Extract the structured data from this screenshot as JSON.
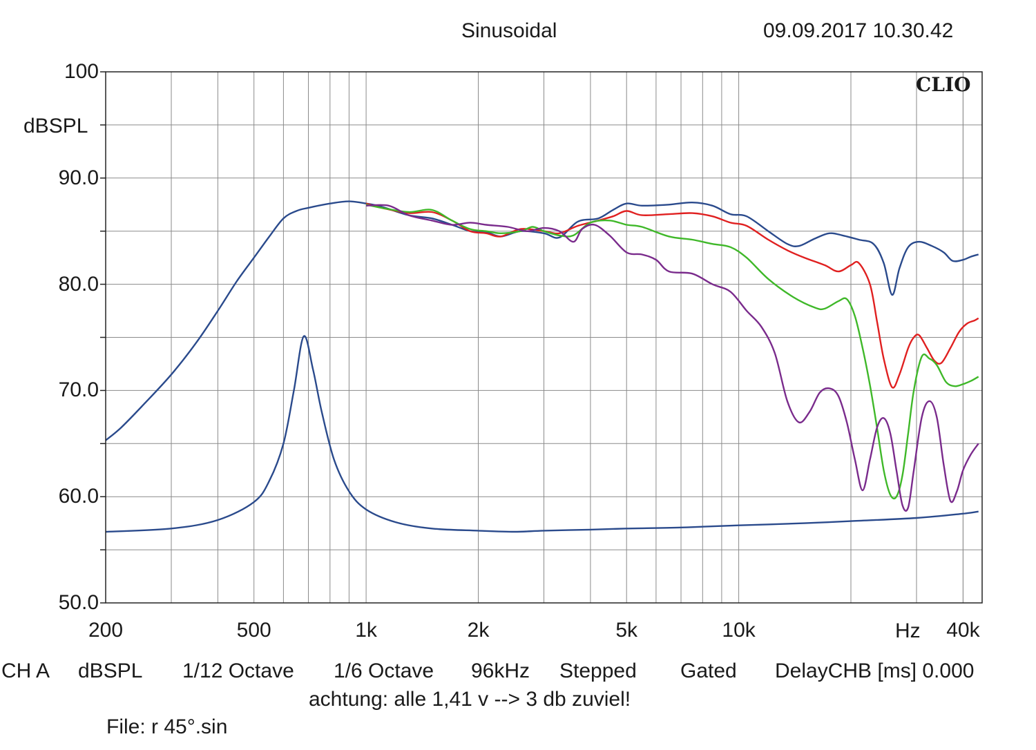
{
  "header": {
    "title": "Sinusoidal",
    "datetime": "09.09.2017 10.30.42"
  },
  "brand": "CLIO",
  "footer": {
    "settings": [
      "CH A",
      "dBSPL",
      "1/12 Octave",
      "1/6 Octave",
      "96kHz",
      "Stepped",
      "Gated",
      "DelayCHB [ms] 0.000"
    ],
    "note": "achtung: alle 1,41 v --> 3 db zuviel!",
    "file": "File: r 45°.sin"
  },
  "chart_data": {
    "type": "line",
    "title": "Sinusoidal",
    "xlabel": "Hz",
    "ylabel": "dBSPL",
    "xscale": "log",
    "xlim": [
      200,
      45000
    ],
    "ylim": [
      50,
      100
    ],
    "grid": true,
    "y_tick_labels": [
      {
        "value": 100,
        "label": "100"
      },
      {
        "value": 90,
        "label": "90.0"
      },
      {
        "value": 80,
        "label": "80.0"
      },
      {
        "value": 70,
        "label": "70.0"
      },
      {
        "value": 60,
        "label": "60.0"
      },
      {
        "value": 50,
        "label": "50.0"
      }
    ],
    "x_tick_labels": [
      {
        "value": 200,
        "label": "200"
      },
      {
        "value": 500,
        "label": "500"
      },
      {
        "value": 1000,
        "label": "1k"
      },
      {
        "value": 2000,
        "label": "2k"
      },
      {
        "value": 5000,
        "label": "5k"
      },
      {
        "value": 10000,
        "label": "10k"
      },
      {
        "value": 40000,
        "label": "40k"
      }
    ],
    "series": [
      {
        "color": "#2a4a8c",
        "points": [
          [
            200,
            65.3
          ],
          [
            220,
            66.5
          ],
          [
            250,
            68.5
          ],
          [
            300,
            71.5
          ],
          [
            350,
            74.5
          ],
          [
            400,
            77.5
          ],
          [
            450,
            80.3
          ],
          [
            500,
            82.5
          ],
          [
            550,
            84.5
          ],
          [
            600,
            86.2
          ],
          [
            650,
            86.9
          ],
          [
            700,
            87.2
          ],
          [
            800,
            87.6
          ],
          [
            900,
            87.8
          ],
          [
            1000,
            87.6
          ],
          [
            1100,
            87.3
          ],
          [
            1300,
            86.5
          ],
          [
            1500,
            86.2
          ],
          [
            1700,
            85.6
          ],
          [
            1900,
            85.0
          ],
          [
            2100,
            84.9
          ],
          [
            2300,
            84.5
          ],
          [
            2600,
            85.0
          ],
          [
            3000,
            84.8
          ],
          [
            3300,
            84.4
          ],
          [
            3700,
            85.9
          ],
          [
            4200,
            86.2
          ],
          [
            4600,
            87.0
          ],
          [
            5000,
            87.6
          ],
          [
            5500,
            87.4
          ],
          [
            6500,
            87.5
          ],
          [
            7500,
            87.7
          ],
          [
            8500,
            87.4
          ],
          [
            9500,
            86.6
          ],
          [
            10500,
            86.4
          ],
          [
            12000,
            85.0
          ],
          [
            13500,
            83.8
          ],
          [
            14500,
            83.6
          ],
          [
            16000,
            84.3
          ],
          [
            17500,
            84.8
          ],
          [
            19000,
            84.6
          ],
          [
            21000,
            84.2
          ],
          [
            23000,
            83.8
          ],
          [
            24500,
            82.0
          ],
          [
            25800,
            79.0
          ],
          [
            27000,
            81.5
          ],
          [
            28500,
            83.5
          ],
          [
            30500,
            84.0
          ],
          [
            33000,
            83.6
          ],
          [
            35500,
            83.0
          ],
          [
            37500,
            82.2
          ],
          [
            40000,
            82.3
          ],
          [
            42000,
            82.6
          ],
          [
            44000,
            82.8
          ]
        ]
      },
      {
        "color": "#2a4a8c",
        "points": [
          [
            200,
            56.7
          ],
          [
            300,
            57.0
          ],
          [
            400,
            57.8
          ],
          [
            500,
            59.5
          ],
          [
            550,
            61.5
          ],
          [
            600,
            65.0
          ],
          [
            640,
            70.0
          ],
          [
            680,
            75.1
          ],
          [
            720,
            72.0
          ],
          [
            760,
            68.0
          ],
          [
            820,
            63.5
          ],
          [
            900,
            60.5
          ],
          [
            1000,
            58.8
          ],
          [
            1200,
            57.6
          ],
          [
            1500,
            57.0
          ],
          [
            2000,
            56.8
          ],
          [
            2500,
            56.7
          ],
          [
            3000,
            56.8
          ],
          [
            4000,
            56.9
          ],
          [
            5000,
            57.0
          ],
          [
            7000,
            57.1
          ],
          [
            10000,
            57.3
          ],
          [
            15000,
            57.5
          ],
          [
            20000,
            57.7
          ],
          [
            30000,
            58.0
          ],
          [
            40000,
            58.4
          ],
          [
            44000,
            58.6
          ]
        ]
      },
      {
        "color": "#e02020",
        "points": [
          [
            1000,
            87.6
          ],
          [
            1100,
            87.2
          ],
          [
            1300,
            86.7
          ],
          [
            1500,
            86.8
          ],
          [
            1700,
            86.0
          ],
          [
            1900,
            85.0
          ],
          [
            2100,
            84.8
          ],
          [
            2300,
            84.5
          ],
          [
            2600,
            85.2
          ],
          [
            3000,
            85.0
          ],
          [
            3300,
            84.8
          ],
          [
            3700,
            85.5
          ],
          [
            4200,
            86.0
          ],
          [
            4600,
            86.4
          ],
          [
            5000,
            86.9
          ],
          [
            5500,
            86.5
          ],
          [
            6500,
            86.6
          ],
          [
            7500,
            86.7
          ],
          [
            8500,
            86.4
          ],
          [
            9500,
            85.8
          ],
          [
            10500,
            85.5
          ],
          [
            12000,
            84.2
          ],
          [
            13500,
            83.2
          ],
          [
            15000,
            82.5
          ],
          [
            17000,
            81.8
          ],
          [
            18500,
            81.2
          ],
          [
            20000,
            81.8
          ],
          [
            21000,
            82.0
          ],
          [
            22500,
            80.0
          ],
          [
            23500,
            76.5
          ],
          [
            24500,
            73.0
          ],
          [
            25800,
            70.3
          ],
          [
            27000,
            71.5
          ],
          [
            28500,
            74.0
          ],
          [
            29500,
            75.0
          ],
          [
            30500,
            75.2
          ],
          [
            32000,
            74.0
          ],
          [
            33500,
            72.8
          ],
          [
            35000,
            72.6
          ],
          [
            37000,
            74.0
          ],
          [
            39000,
            75.5
          ],
          [
            41000,
            76.3
          ],
          [
            43000,
            76.6
          ],
          [
            44000,
            76.8
          ]
        ]
      },
      {
        "color": "#3fb829",
        "points": [
          [
            1000,
            87.5
          ],
          [
            1100,
            87.2
          ],
          [
            1300,
            86.8
          ],
          [
            1500,
            87.0
          ],
          [
            1700,
            86.0
          ],
          [
            1900,
            85.2
          ],
          [
            2100,
            85.0
          ],
          [
            2300,
            84.8
          ],
          [
            2600,
            85.0
          ],
          [
            2800,
            85.4
          ],
          [
            3000,
            85.0
          ],
          [
            3300,
            84.6
          ],
          [
            3600,
            84.6
          ],
          [
            4000,
            85.8
          ],
          [
            4500,
            86.0
          ],
          [
            5000,
            85.6
          ],
          [
            5500,
            85.4
          ],
          [
            6500,
            84.5
          ],
          [
            7500,
            84.2
          ],
          [
            8500,
            83.8
          ],
          [
            9500,
            83.5
          ],
          [
            10500,
            82.5
          ],
          [
            12000,
            80.5
          ],
          [
            14000,
            78.8
          ],
          [
            16000,
            77.8
          ],
          [
            17000,
            77.7
          ],
          [
            18500,
            78.4
          ],
          [
            19500,
            78.6
          ],
          [
            20500,
            77.0
          ],
          [
            21500,
            74.0
          ],
          [
            22500,
            70.5
          ],
          [
            23500,
            66.5
          ],
          [
            24500,
            62.5
          ],
          [
            25500,
            60.2
          ],
          [
            26500,
            60.0
          ],
          [
            27500,
            62.0
          ],
          [
            28500,
            66.0
          ],
          [
            29500,
            70.0
          ],
          [
            31000,
            73.2
          ],
          [
            32500,
            73.0
          ],
          [
            34000,
            72.4
          ],
          [
            36000,
            70.8
          ],
          [
            38000,
            70.4
          ],
          [
            40000,
            70.6
          ],
          [
            42000,
            70.9
          ],
          [
            44000,
            71.3
          ]
        ]
      },
      {
        "color": "#7a2b8c",
        "points": [
          [
            1000,
            87.4
          ],
          [
            1150,
            87.4
          ],
          [
            1300,
            86.5
          ],
          [
            1500,
            86.0
          ],
          [
            1700,
            85.6
          ],
          [
            1900,
            85.8
          ],
          [
            2100,
            85.6
          ],
          [
            2400,
            85.4
          ],
          [
            2700,
            85.0
          ],
          [
            3000,
            85.3
          ],
          [
            3300,
            85.0
          ],
          [
            3600,
            84.0
          ],
          [
            3800,
            85.2
          ],
          [
            4100,
            85.6
          ],
          [
            4500,
            84.6
          ],
          [
            5000,
            83.0
          ],
          [
            5500,
            82.8
          ],
          [
            6000,
            82.3
          ],
          [
            6500,
            81.2
          ],
          [
            7500,
            81.0
          ],
          [
            8500,
            80.0
          ],
          [
            9500,
            79.3
          ],
          [
            10500,
            77.5
          ],
          [
            11500,
            76.0
          ],
          [
            12500,
            73.5
          ],
          [
            13500,
            69.0
          ],
          [
            14500,
            67.0
          ],
          [
            15500,
            68.0
          ],
          [
            16500,
            69.8
          ],
          [
            17500,
            70.2
          ],
          [
            18500,
            69.5
          ],
          [
            19500,
            67.0
          ],
          [
            20500,
            63.5
          ],
          [
            21500,
            60.6
          ],
          [
            22500,
            63.5
          ],
          [
            23500,
            66.5
          ],
          [
            24500,
            67.4
          ],
          [
            25500,
            66.0
          ],
          [
            26500,
            62.5
          ],
          [
            27500,
            59.2
          ],
          [
            28500,
            59.0
          ],
          [
            29500,
            62.5
          ],
          [
            31000,
            67.5
          ],
          [
            32500,
            69.0
          ],
          [
            34000,
            67.5
          ],
          [
            35500,
            63.0
          ],
          [
            37000,
            59.6
          ],
          [
            38500,
            60.5
          ],
          [
            40000,
            62.5
          ],
          [
            42000,
            64.0
          ],
          [
            44000,
            65.0
          ]
        ]
      }
    ]
  }
}
